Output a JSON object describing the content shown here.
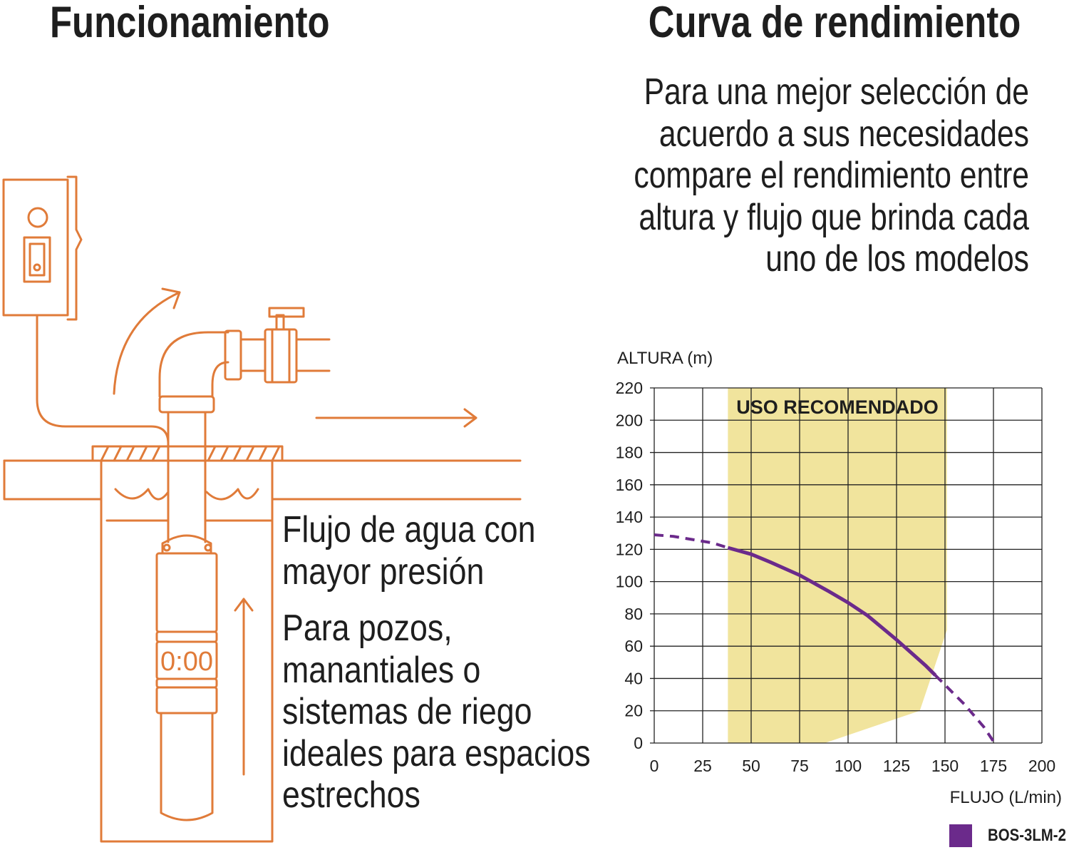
{
  "headings": {
    "left": "Funcionamiento",
    "right": "Curva de rendimiento"
  },
  "intro_lines": [
    "Para una mejor selección de",
    "acuerdo a sus necesidades",
    "compare el rendimiento entre",
    "altura y flujo que brinda cada",
    "uno de los modelos"
  ],
  "description": {
    "flow_lines": [
      "Flujo de agua con",
      "mayor presión"
    ],
    "use_lines": [
      "Para pozos,",
      "manantiales o",
      "sistemas de riego",
      "ideales para espacios",
      "estrechos"
    ]
  },
  "pump_display": "0:00",
  "colors": {
    "illustration": "#e07b39",
    "curve": "#6b2a8b",
    "recommended_band": "#f1e49d",
    "grid": "#222222"
  },
  "chart_data": {
    "type": "line",
    "ylabel": "ALTURA (m)",
    "xlabel": "FLUJO (L/min)",
    "xlim": [
      0,
      200
    ],
    "ylim": [
      0,
      220
    ],
    "xticks": [
      0,
      25,
      50,
      75,
      100,
      125,
      150,
      175,
      200
    ],
    "yticks": [
      0,
      20,
      40,
      60,
      80,
      100,
      120,
      140,
      160,
      180,
      200,
      220
    ],
    "grid": true,
    "legend_position": "bottom-right",
    "recommended_zone": {
      "label": "USO RECOMENDADO",
      "outline": [
        [
          38,
          0
        ],
        [
          88,
          0
        ],
        [
          137,
          20
        ],
        [
          151,
          70
        ],
        [
          151,
          220
        ],
        [
          38,
          220
        ]
      ]
    },
    "series": [
      {
        "name": "BOS-3LM-2",
        "x": [
          0,
          10,
          20,
          30,
          38,
          50,
          60,
          75,
          90,
          100,
          110,
          125,
          140,
          145,
          150,
          160,
          170,
          175
        ],
        "y": [
          129,
          128,
          126,
          124,
          121,
          117,
          112,
          104,
          94,
          87,
          79,
          64,
          48,
          42,
          36,
          24,
          10,
          1
        ],
        "solid_range": [
          38,
          145
        ]
      }
    ]
  }
}
